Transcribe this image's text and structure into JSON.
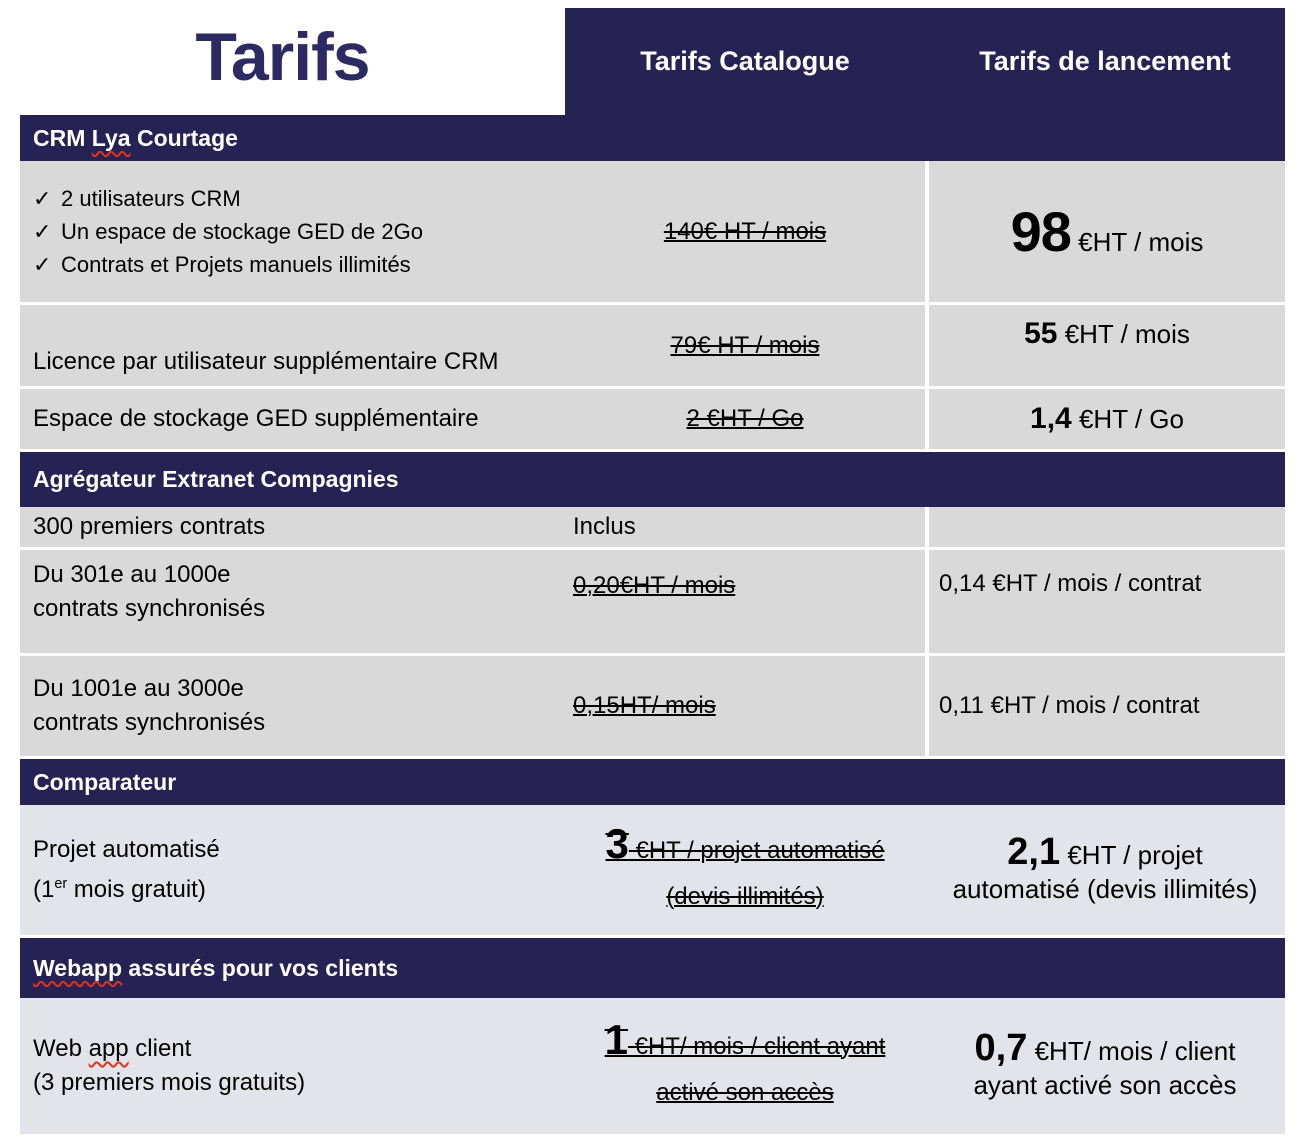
{
  "title": "Tarifs",
  "glyphs": {
    "check": "✓"
  },
  "colors": {
    "navy": "#272254",
    "row_gray": "#D9D9D9",
    "row_gray_light": "#E3E4E9",
    "spellcheck_red": "#E0321E"
  },
  "header_columns": {
    "catalogue": "Tarifs Catalogue",
    "lancement": "Tarifs de lancement"
  },
  "crm": {
    "header": {
      "pre": "CRM ",
      "wavy": "Lya",
      "post": " Courtage"
    },
    "row_pack": {
      "features": [
        "2 utilisateurs CRM",
        "Un espace de stockage GED de 2Go",
        "Contrats et Projets manuels illimités"
      ],
      "old_price": "140€ HT / mois",
      "new_big": "98",
      "new_rest": " €HT / mois"
    },
    "row_licence": {
      "label": "Licence par utilisateur supplémentaire CRM",
      "old_price": "79€ HT / mois",
      "new_big": "55",
      "new_rest": " €HT / mois"
    },
    "row_storage": {
      "label": "Espace de stockage GED supplémentaire",
      "old_price": "2 €HT / Go",
      "new_big": "1,4",
      "new_rest": " €HT / Go"
    }
  },
  "aggregateur": {
    "header": "Agrégateur Extranet Compagnies",
    "row_300": {
      "label": "300 premiers contrats",
      "middle": "Inclus"
    },
    "row_301_1000": {
      "label_line1": "Du 301e au 1000e",
      "label_line2": "contrats synchronisés",
      "old_price": "0,20€HT / mois",
      "new_price": "0,14 €HT / mois / contrat"
    },
    "row_1001_3000": {
      "label_line1": "Du 1001e au 3000e",
      "label_line2": "contrats synchronisés",
      "old_price": "0,15HT/ mois",
      "new_price": "0,11 €HT / mois / contrat"
    }
  },
  "comparateur": {
    "header": "Comparateur",
    "row": {
      "label_line1": "Projet automatisé",
      "label_line2_pre": "(1",
      "label_line2_sup": "er",
      "label_line2_post": " mois gratuit)",
      "old_big": "3",
      "old_line1": " €HT / projet automatisé",
      "old_line2": "(devis illimités)",
      "new_big": "2,1",
      "new_line1": " €HT / projet",
      "new_line2": "automatisé (devis illimités)"
    }
  },
  "webapp": {
    "header": {
      "wavy": "Webapp",
      "post": " assurés pour vos clients"
    },
    "row": {
      "label_line1_pre": "Web ",
      "label_line1_wavy": "app",
      "label_line1_post": " client",
      "label_line2": "(3 premiers mois gratuits)",
      "old_big": "1",
      "old_line1": " €HT/ mois / client ayant",
      "old_line2": "activé son accès",
      "new_big": "0,7",
      "new_line1": " €HT/ mois / client",
      "new_line2": "ayant activé son accès"
    }
  }
}
